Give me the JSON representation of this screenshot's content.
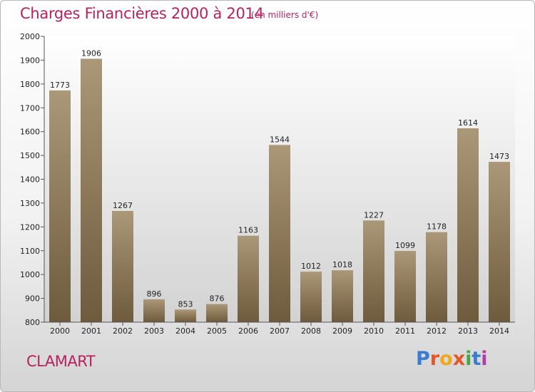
{
  "header": {
    "title": "Charges Financières 2000 à 2014",
    "unit": "(en milliers d'€)"
  },
  "footer": {
    "city": "CLAMART"
  },
  "logo": {
    "text": "Proxiti",
    "colors": [
      "#3b7bd0",
      "#e2582b",
      "#f0a81a",
      "#e2582b",
      "#46a84b",
      "#3b7bd0",
      "#b03ea8"
    ]
  },
  "colors": {
    "title": "#b5225f",
    "bar_light": "#ab9878",
    "bar_dark": "#6e5a3c",
    "plot_bg_top": "#ffffff",
    "plot_bg_bottom": "#d2d2d2"
  },
  "chart_data": {
    "type": "bar",
    "title": "Charges Financières 2000 à 2014",
    "subtitle": "(en milliers d'€)",
    "xlabel": "",
    "ylabel": "",
    "categories": [
      "2000",
      "2001",
      "2002",
      "2003",
      "2004",
      "2005",
      "2006",
      "2007",
      "2008",
      "2009",
      "2010",
      "2011",
      "2012",
      "2013",
      "2014"
    ],
    "values": [
      1773,
      1906,
      1267,
      896,
      853,
      876,
      1163,
      1544,
      1012,
      1018,
      1227,
      1099,
      1178,
      1614,
      1473
    ],
    "ylim": [
      800,
      2000
    ],
    "yticks": [
      800,
      900,
      1000,
      1100,
      1200,
      1300,
      1400,
      1500,
      1600,
      1700,
      1800,
      1900,
      2000
    ],
    "grid": false,
    "legend": "none"
  }
}
